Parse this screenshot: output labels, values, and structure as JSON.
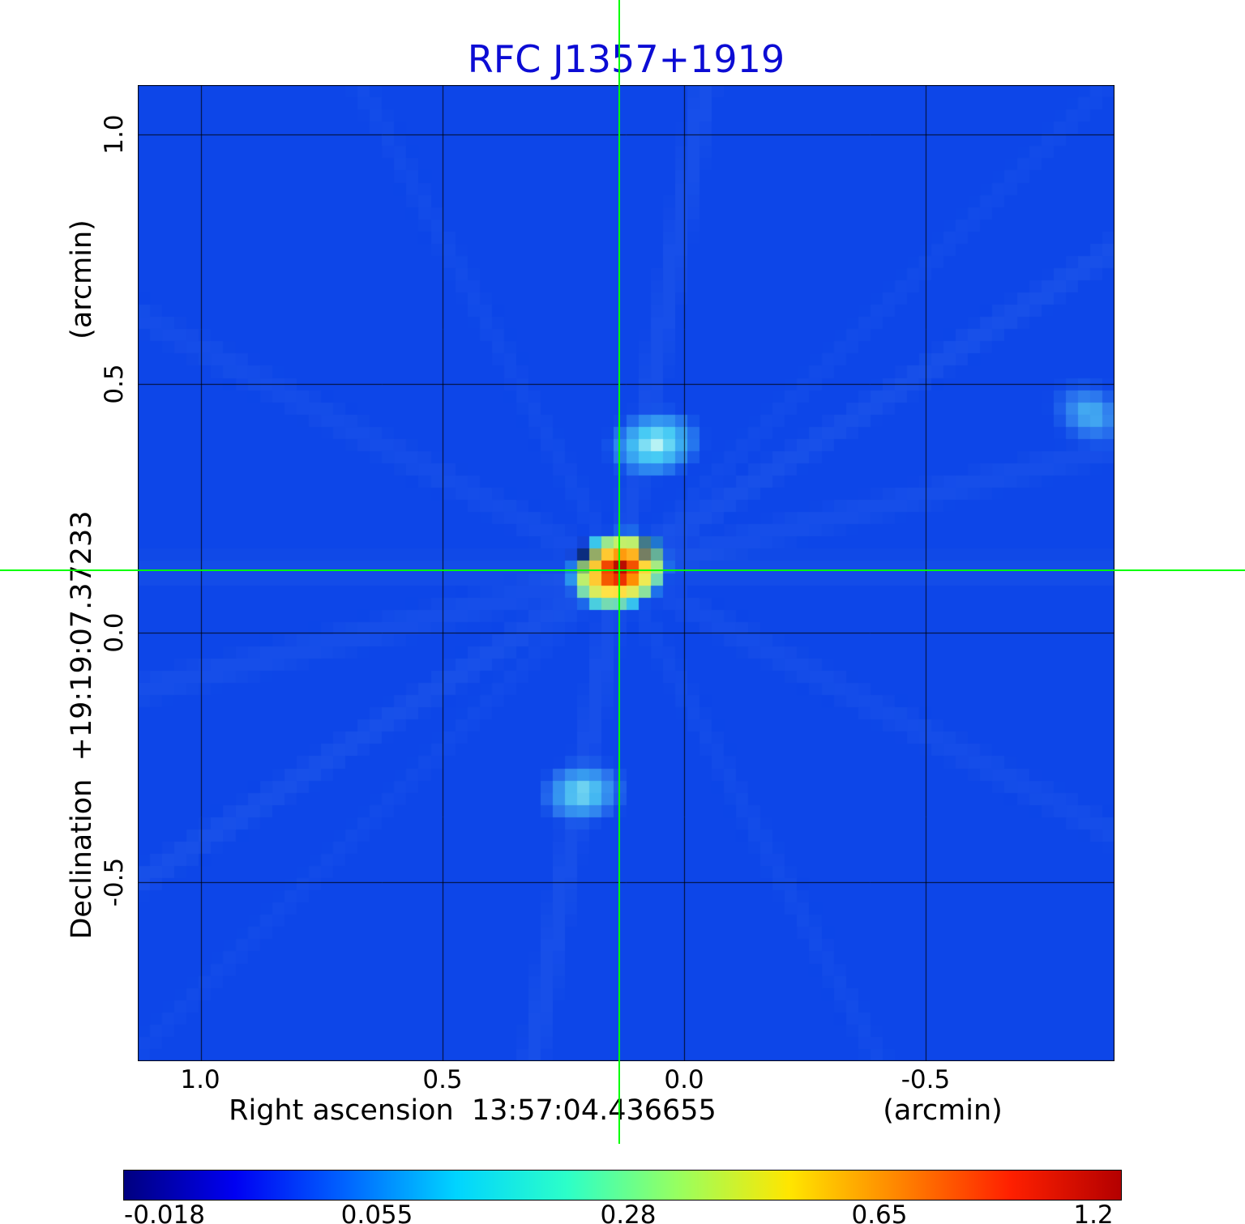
{
  "title": "RFC J1357+1919",
  "colors": {
    "title": "#0c0cd4",
    "crosshair": "#00ff00",
    "grid": "#000000",
    "background_level": "#0d46e8",
    "streak": "#6a9cf8"
  },
  "axes": {
    "x_label": "Right ascension  13:57:04.436655",
    "x_unit": "(arcmin)",
    "y_label": "Declination  +19:19:07.37233",
    "y_unit": "(arcmin)",
    "x_ticks": [
      "1.0",
      "0.5",
      "0.0",
      "-0.5"
    ],
    "y_ticks": [
      "1.0",
      "0.5",
      "0.0",
      "-0.5"
    ]
  },
  "colorbar": {
    "colormap": "jet",
    "tick_labels": [
      "-0.018",
      "0.055",
      "0.28",
      "0.65",
      "1.2"
    ]
  },
  "chart_data": {
    "type": "heatmap",
    "title": "RFC J1357+1919",
    "xlabel": "Right ascension  13:57:04.436655 (arcmin)",
    "ylabel": "Declination  +19:19:07.37233 (arcmin)",
    "x_range": [
      1.13,
      -0.89
    ],
    "y_range": [
      1.1,
      -0.86
    ],
    "x_ticks": [
      1.0,
      0.5,
      0.0,
      -0.5
    ],
    "y_ticks": [
      1.0,
      0.5,
      0.0,
      -0.5
    ],
    "grid": true,
    "colormap": "jet",
    "colorbar_ticks": [
      -0.018,
      0.055,
      0.28,
      0.65,
      1.2
    ],
    "colorbar_scale": "nonlinear",
    "colormap_stops": [
      "#000080",
      "#0000f2",
      "#0064ff",
      "#00d4ff",
      "#2cffc8",
      "#97ff60",
      "#ffe600",
      "#ff8400",
      "#ff2000",
      "#b40000"
    ],
    "crosshair": {
      "x": 0.135,
      "y": 0.125
    },
    "sources": [
      {
        "name": "core",
        "x": 0.135,
        "y": 0.125,
        "rx": 0.055,
        "ry": 0.042,
        "rot_deg": -18,
        "peak": 1.2,
        "colors": [
          "#8b0000",
          "#e81800",
          "#ff8c00",
          "#ffe84a",
          "#b8f070",
          "#38c8f0"
        ]
      },
      {
        "name": "upper-lobe",
        "x": 0.06,
        "y": 0.38,
        "rx": 0.055,
        "ry": 0.04,
        "rot_deg": -10,
        "peak": 0.12,
        "colors": [
          "#c8f8f4",
          "#48ccf4",
          "#2a80f0"
        ]
      },
      {
        "name": "lower-lobe",
        "x": 0.21,
        "y": -0.32,
        "rx": 0.05,
        "ry": 0.038,
        "rot_deg": -8,
        "peak": 0.09,
        "colors": [
          "#90e8f0",
          "#40b4f2",
          "#2a72ee"
        ]
      },
      {
        "name": "edge-smudge",
        "x": -0.84,
        "y": 0.44,
        "rx": 0.05,
        "ry": 0.038,
        "rot_deg": 25,
        "peak": 0.05,
        "colors": [
          "#4ec2f2",
          "#2a74ee"
        ]
      }
    ],
    "negative_spots": [
      {
        "x": 0.205,
        "y": 0.155,
        "r": 0.021,
        "color": "#001070"
      },
      {
        "x": 0.075,
        "y": 0.17,
        "r": 0.019,
        "color": "#001070"
      }
    ],
    "artifact_streaks": [
      {
        "angle_deg": 0,
        "width_arcmin": 0.06,
        "alpha": 0.08
      },
      {
        "angle_deg": 14,
        "width_arcmin": 0.05,
        "alpha": 0.1
      },
      {
        "angle_deg": 33,
        "width_arcmin": 0.045,
        "alpha": 0.12
      },
      {
        "angle_deg": 45,
        "width_arcmin": 0.035,
        "alpha": 0.07
      },
      {
        "angle_deg": 80,
        "width_arcmin": 0.05,
        "alpha": 0.11
      },
      {
        "angle_deg": 118,
        "width_arcmin": 0.04,
        "alpha": 0.07
      },
      {
        "angle_deg": 152,
        "width_arcmin": 0.05,
        "alpha": 0.09
      }
    ]
  }
}
